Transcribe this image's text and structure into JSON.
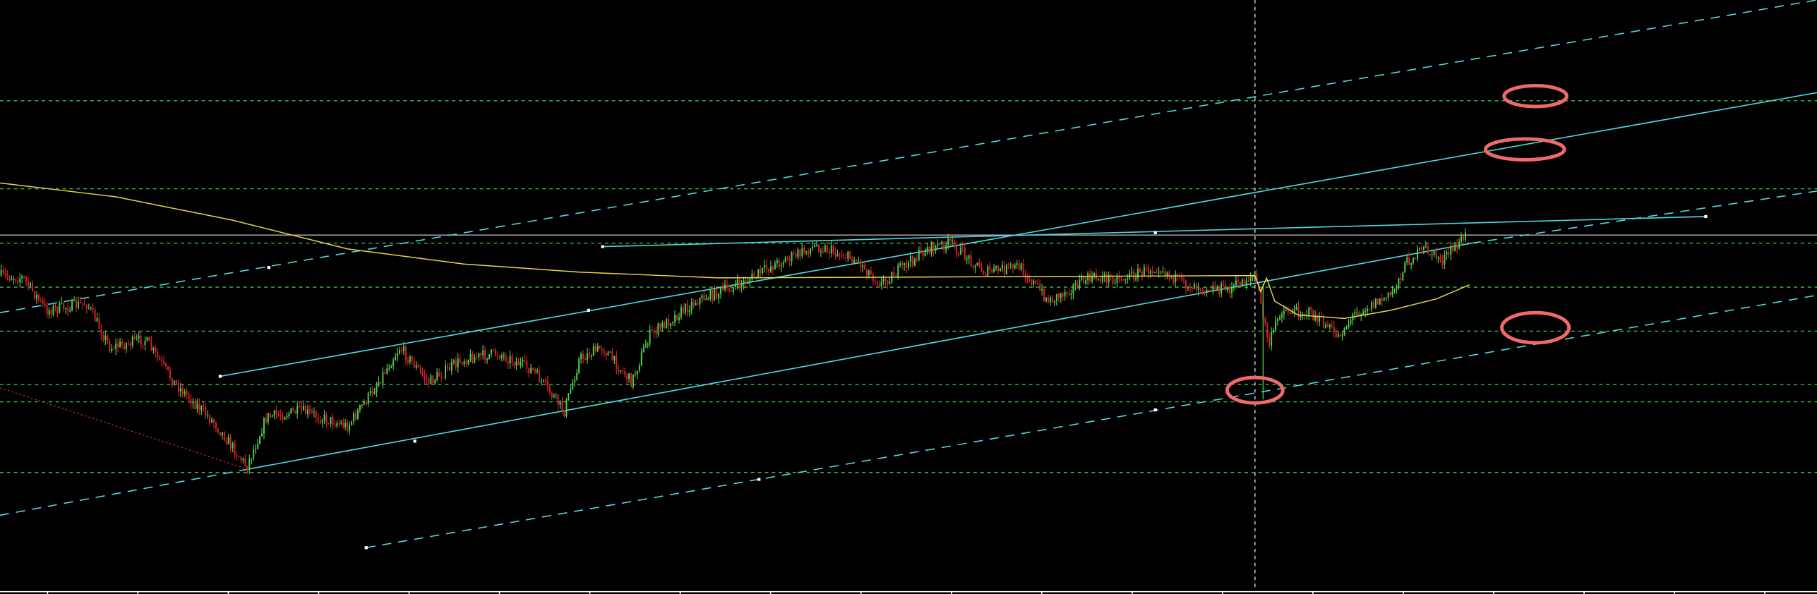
{
  "chart_data": {
    "type": "candlestick",
    "title": "",
    "xlabel": "",
    "ylabel": "",
    "grid": false,
    "legend": "none",
    "colors": {
      "background": "#000000",
      "bull_candle": "#4fd14a",
      "bear_candle": "#d8202a",
      "channel_lines": "#4fd6e0",
      "horizontal_levels": "#3fbf4f",
      "moving_average": "#e6d84a",
      "resistance_line": "#b8b8b8",
      "vertical_marker": "#e8e8e8",
      "trend_dotted": "#c0302a",
      "highlight_ellipses": "#f06a6a",
      "axis": "#ffffff"
    },
    "annotations": {
      "highlight_ellipse_count": 4,
      "horizontal_level_count": 8,
      "channel_line_count": 6
    }
  }
}
